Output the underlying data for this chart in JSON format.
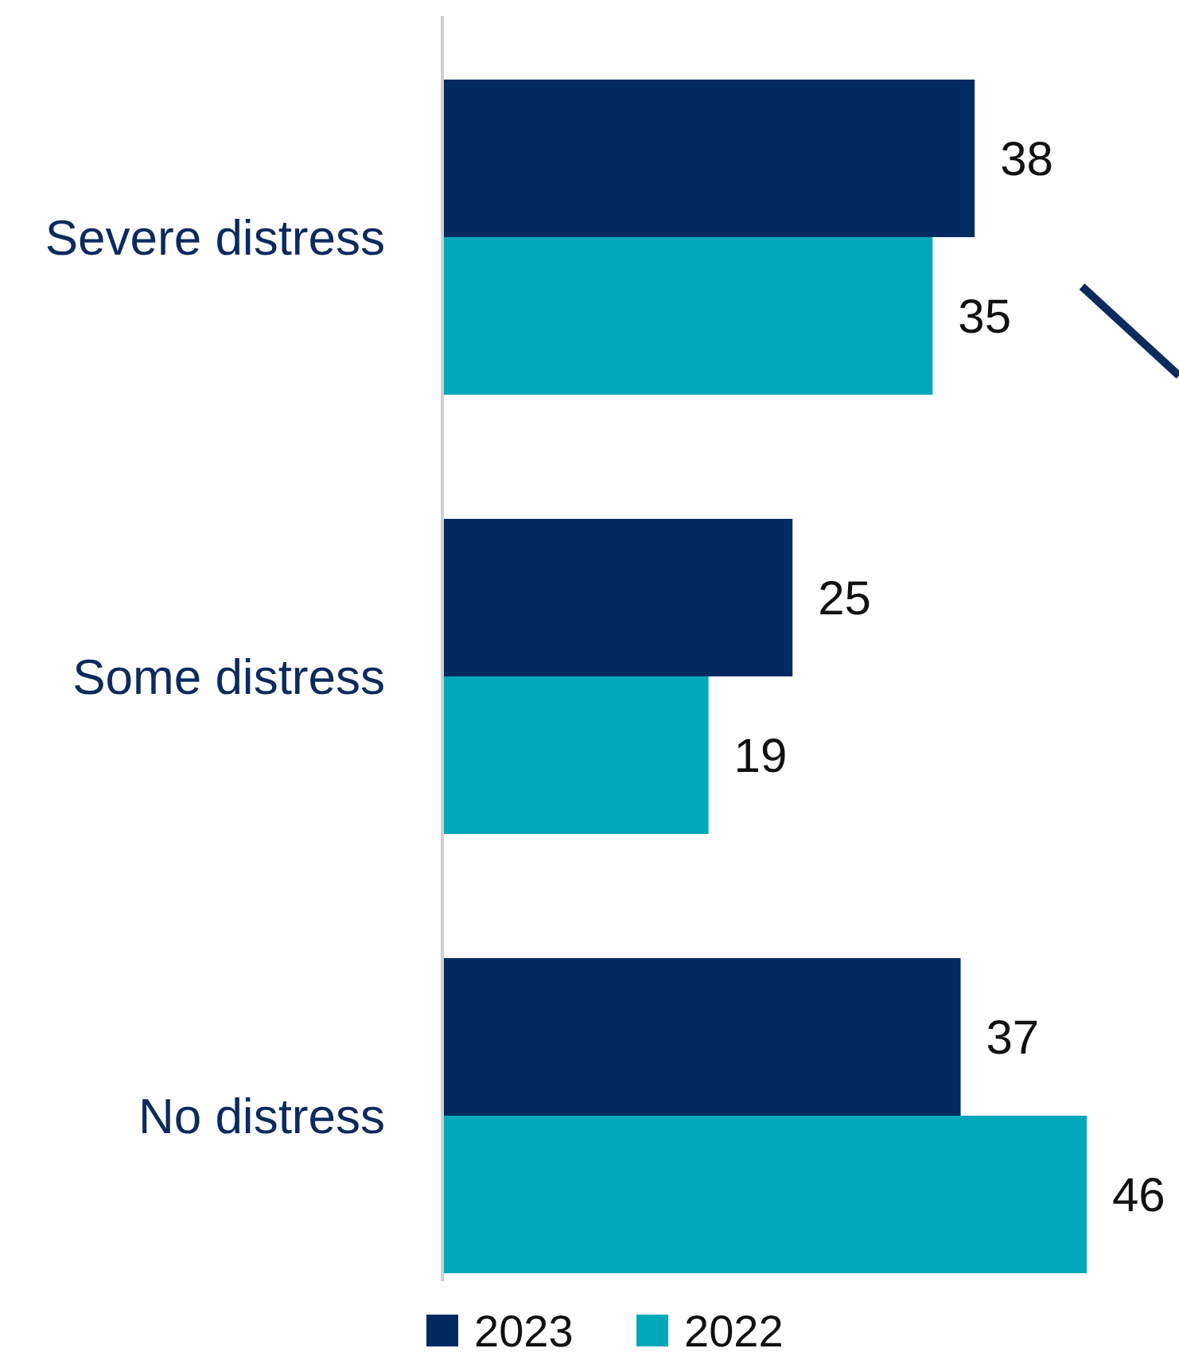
{
  "chart_data": {
    "type": "bar",
    "orientation": "horizontal",
    "categories": [
      "Severe distress",
      "Some distress",
      "No distress"
    ],
    "series": [
      {
        "name": "2023",
        "color": "#002a62",
        "values": [
          38,
          25,
          37
        ]
      },
      {
        "name": "2022",
        "color": "#00a8ba",
        "values": [
          35,
          19,
          46
        ]
      }
    ],
    "data_labels": true,
    "legend": "bottom"
  }
}
